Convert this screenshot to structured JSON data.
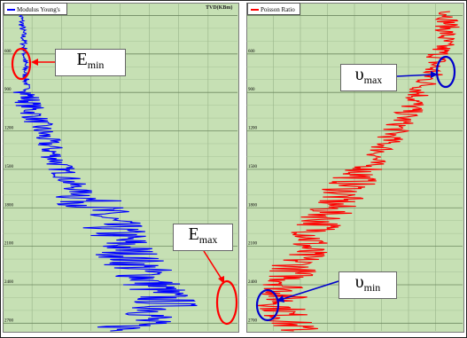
{
  "chart_data": [
    {
      "type": "line",
      "orientation": "vertical-depth",
      "header_right": "TVD(KBm)",
      "legend": {
        "label": "Modulus Young's",
        "color": "#0000ff"
      },
      "y_axis": {
        "ticks": [
          "300",
          "600",
          "900",
          "1200",
          "1500",
          "1800",
          "2100",
          "2400",
          "2700"
        ],
        "range": [
          200,
          2760
        ],
        "inverted": true
      },
      "annotations": [
        {
          "base": "E",
          "sub": "min",
          "ring_color": "#ff0000",
          "arrow_color": "#ff0000"
        },
        {
          "base": "E",
          "sub": "max",
          "ring_color": "#ff0000",
          "arrow_color": "#ff0000"
        }
      ],
      "series": [
        {
          "color": "#0000ff",
          "trend": [
            [
              270,
              20
            ],
            [
              500,
              24
            ],
            [
              800,
              26
            ],
            [
              1000,
              30
            ],
            [
              1200,
              44
            ],
            [
              1400,
              58
            ],
            [
              1600,
              76
            ],
            [
              1800,
              104
            ],
            [
              2000,
              128
            ],
            [
              2200,
              146
            ],
            [
              2400,
              170
            ],
            [
              2560,
              185
            ],
            [
              2640,
              172
            ],
            [
              2700,
              150
            ],
            [
              2760,
              130
            ]
          ],
          "range": [
            0,
            270
          ]
        }
      ]
    },
    {
      "type": "line",
      "orientation": "vertical-depth",
      "legend": {
        "label": "Poisson Ratio",
        "color": "#ff0000"
      },
      "y_axis": {
        "ticks": [
          "300",
          "600",
          "900",
          "1200",
          "1500",
          "1800",
          "2100",
          "2400",
          "2700"
        ],
        "range": [
          200,
          2760
        ],
        "inverted": true
      },
      "annotations": [
        {
          "base": "υ",
          "sub": "max",
          "ring_color": "#0000cc",
          "arrow_color": "#0000cc"
        },
        {
          "base": "υ",
          "sub": "min",
          "ring_color": "#0000cc",
          "arrow_color": "#0000cc"
        }
      ],
      "series": [
        {
          "color": "#ff0000",
          "trend": [
            [
              270,
              230
            ],
            [
              450,
              225
            ],
            [
              600,
              218
            ],
            [
              800,
              205
            ],
            [
              1000,
              188
            ],
            [
              1200,
              168
            ],
            [
              1400,
              148
            ],
            [
              1600,
              120
            ],
            [
              1800,
              95
            ],
            [
              2000,
              78
            ],
            [
              2200,
              60
            ],
            [
              2400,
              46
            ],
            [
              2560,
              40
            ],
            [
              2700,
              48
            ],
            [
              2760,
              60
            ]
          ],
          "range": [
            0,
            246
          ]
        }
      ]
    }
  ]
}
